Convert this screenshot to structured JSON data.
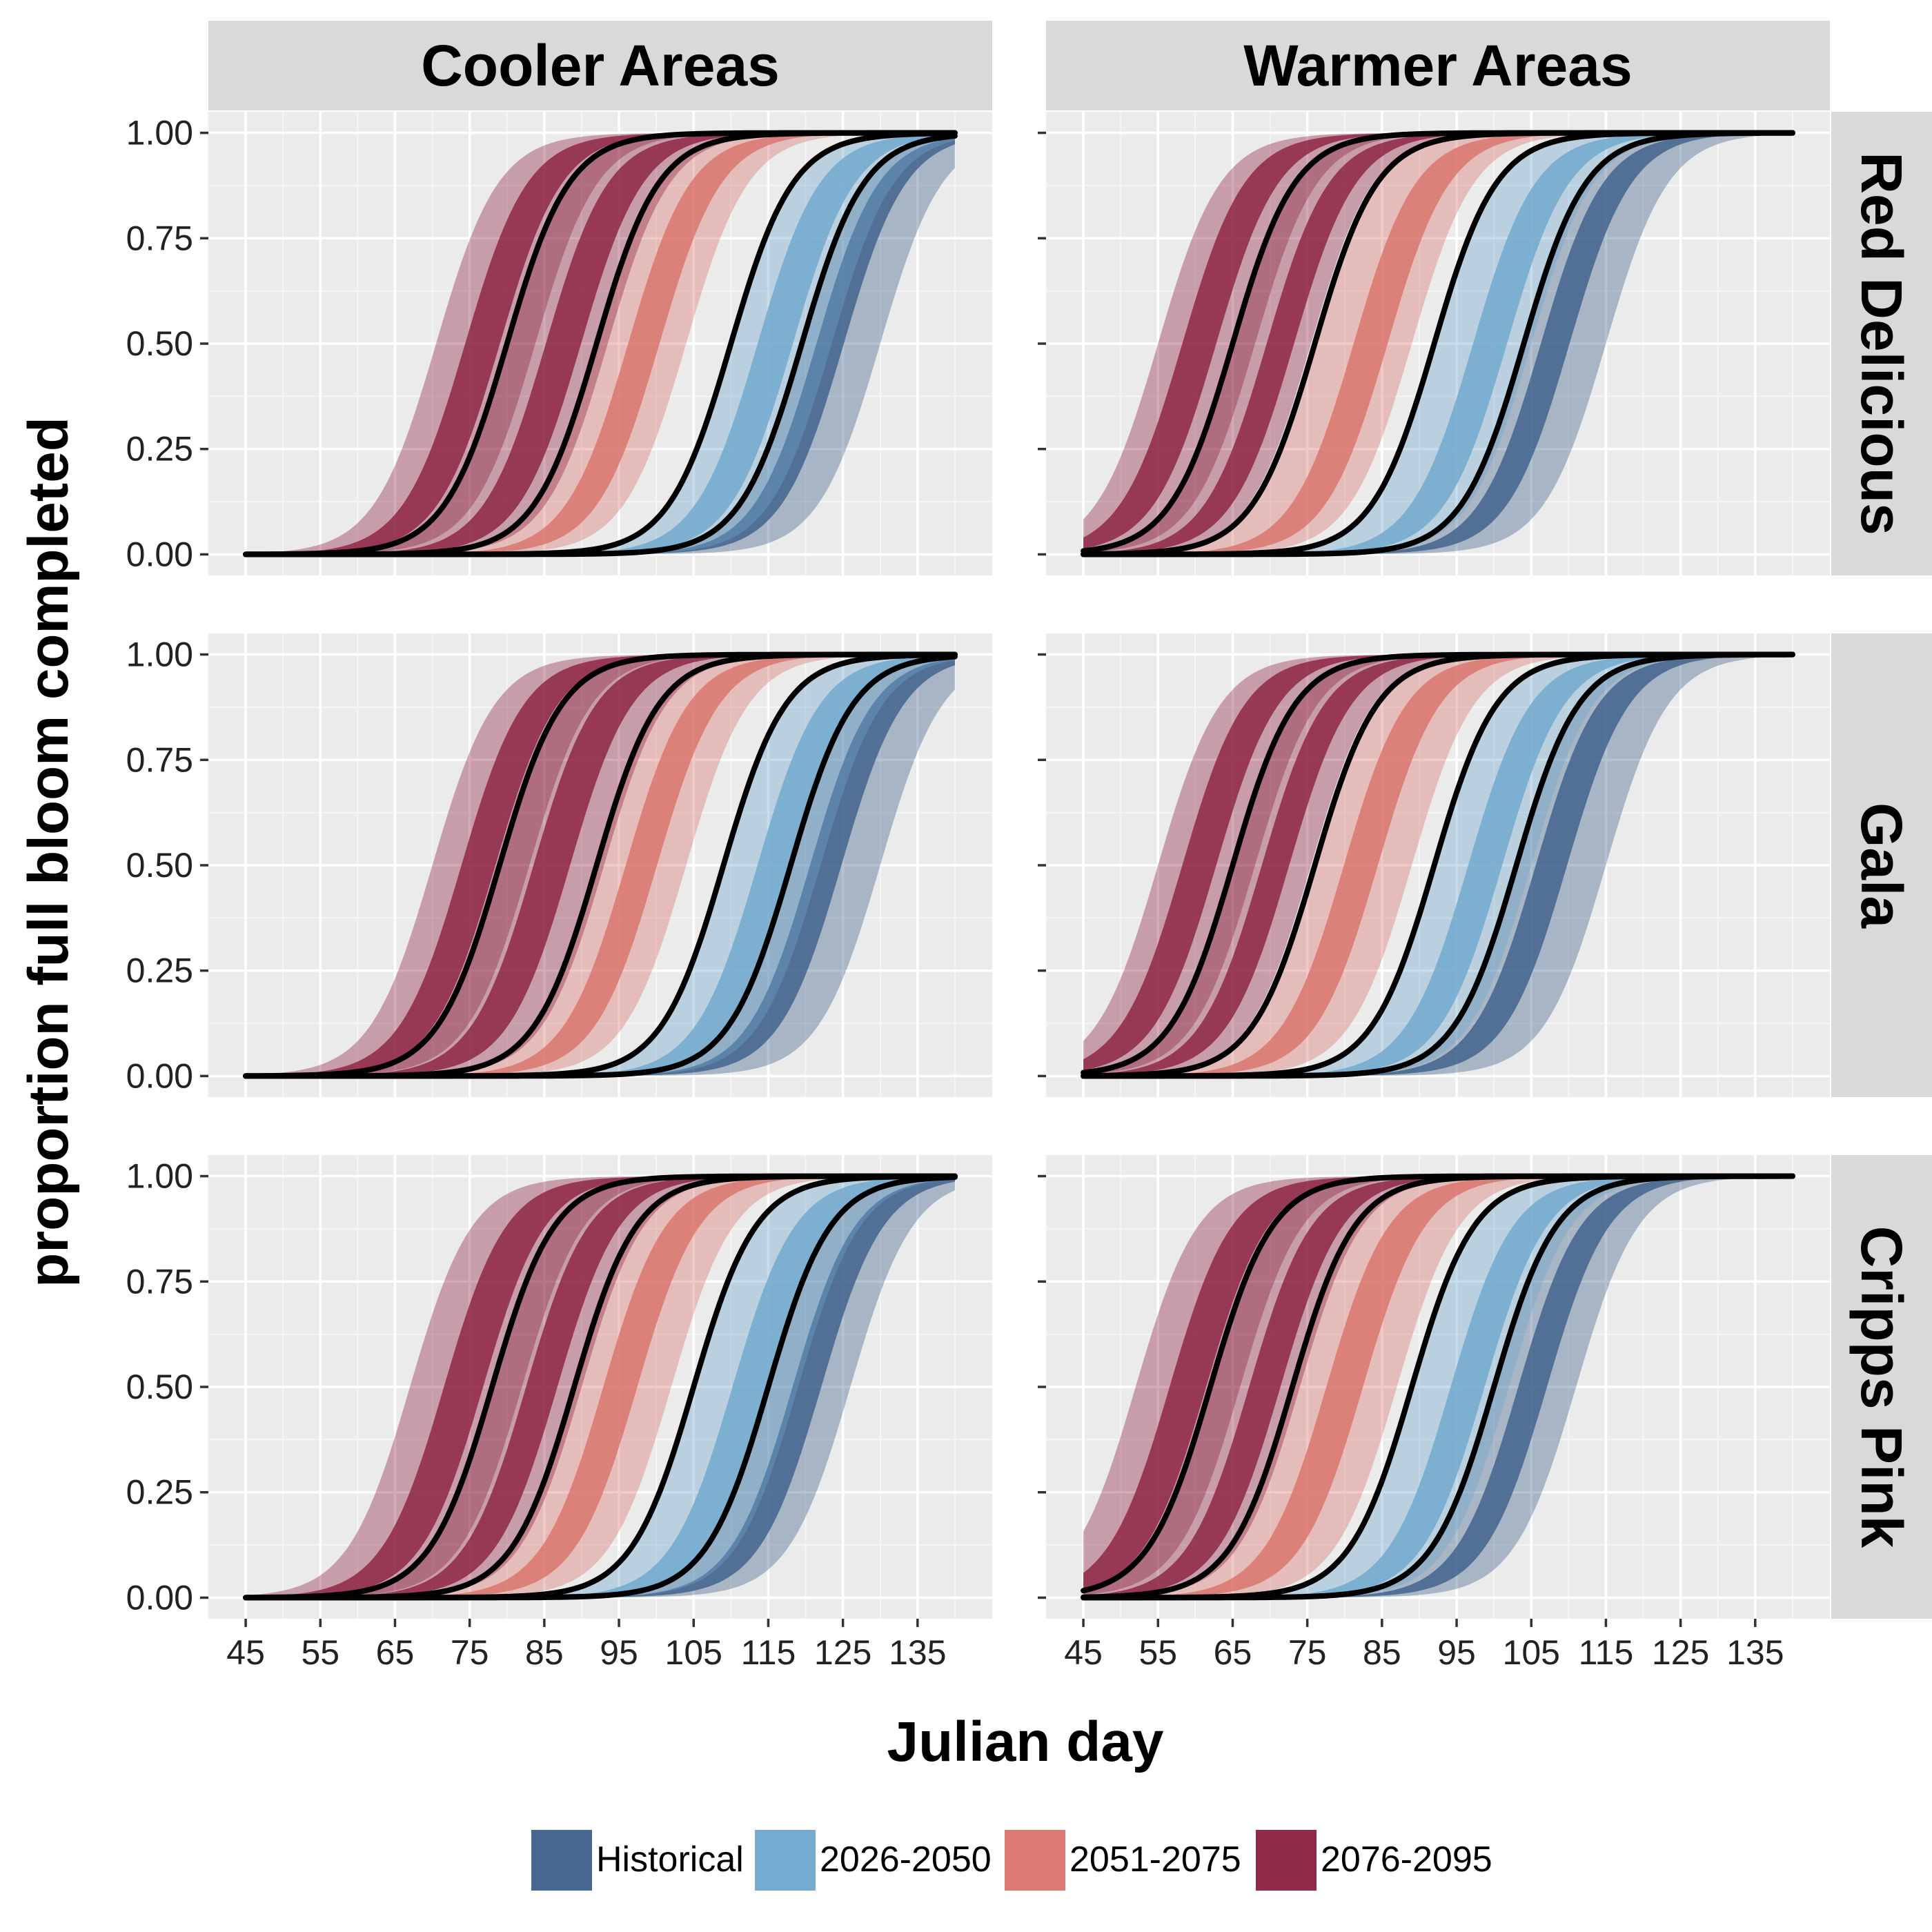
{
  "chart_data": {
    "type": "area",
    "xlabel": "Julian day",
    "ylabel": "proportion full bloom completed",
    "xlim": [
      40,
      145
    ],
    "ylim": [
      -0.05,
      1.05
    ],
    "x_ticks": [
      45,
      55,
      65,
      75,
      85,
      95,
      105,
      115,
      125,
      135
    ],
    "y_ticks": [
      0,
      0.25,
      0.5,
      0.75,
      1
    ],
    "y_tick_labels": [
      "0.00",
      "0.25",
      "0.50",
      "0.75",
      "1.00"
    ],
    "x_range": [
      45,
      140
    ],
    "grid": true,
    "legend_position": "bottom",
    "columns": [
      "Cooler Areas",
      "Warmer Areas"
    ],
    "rows": [
      "Red Delicious",
      "Gala",
      "Cripps Pink"
    ],
    "series": [
      {
        "name": "Historical",
        "color": "#3c5f8a"
      },
      {
        "name": "2026-2050",
        "color": "#6ea6cd"
      },
      {
        "name": "2051-2075",
        "color": "#d9726a"
      },
      {
        "name": "2076-2095",
        "color": "#8b2040"
      }
    ],
    "panels": [
      {
        "row": "Red Delicious",
        "column": "Cooler Areas",
        "midpoints": [
          [
            70.5,
            76.5,
            83.8
          ],
          [
            80,
            88,
            93.5
          ],
          [
            92,
            98.5,
            104
          ],
          [
            110,
            115.5,
            123.5
          ],
          [
            119.5,
            122.5,
            130
          ]
        ]
      },
      {
        "row": "Red Delicious",
        "column": "Warmer Areas",
        "midpoints": [
          [
            55,
            60,
            68
          ],
          [
            65,
            72,
            75.5
          ],
          [
            76,
            84,
            89
          ],
          [
            92,
            100,
            105
          ],
          [
            104,
            107.5,
            115
          ]
        ]
      },
      {
        "row": "Gala",
        "column": "Cooler Areas",
        "midpoints": [
          [
            70,
            76,
            83
          ],
          [
            79,
            86,
            93
          ],
          [
            92,
            98,
            104
          ],
          [
            109,
            116,
            122
          ],
          [
            118,
            122,
            130
          ]
        ]
      },
      {
        "row": "Gala",
        "column": "Warmer Areas",
        "midpoints": [
          [
            55,
            60,
            68
          ],
          [
            65,
            71,
            75.5
          ],
          [
            76,
            82,
            89
          ],
          [
            92,
            99,
            105
          ],
          [
            103,
            107,
            115
          ]
        ]
      },
      {
        "row": "Cripps Pink",
        "column": "Cooler Areas",
        "midpoints": [
          [
            67,
            74,
            82
          ],
          [
            78,
            85,
            90
          ],
          [
            89,
            95,
            102
          ],
          [
            105,
            113,
            119
          ],
          [
            115,
            120,
            126
          ]
        ]
      },
      {
        "row": "Cripps Pink",
        "column": "Warmer Areas",
        "midpoints": [
          [
            52,
            59,
            66
          ],
          [
            62,
            70,
            74
          ],
          [
            73,
            80,
            87
          ],
          [
            89,
            97,
            102
          ],
          [
            100,
            105,
            111
          ]
        ]
      }
    ],
    "steepness": 0.24
  }
}
